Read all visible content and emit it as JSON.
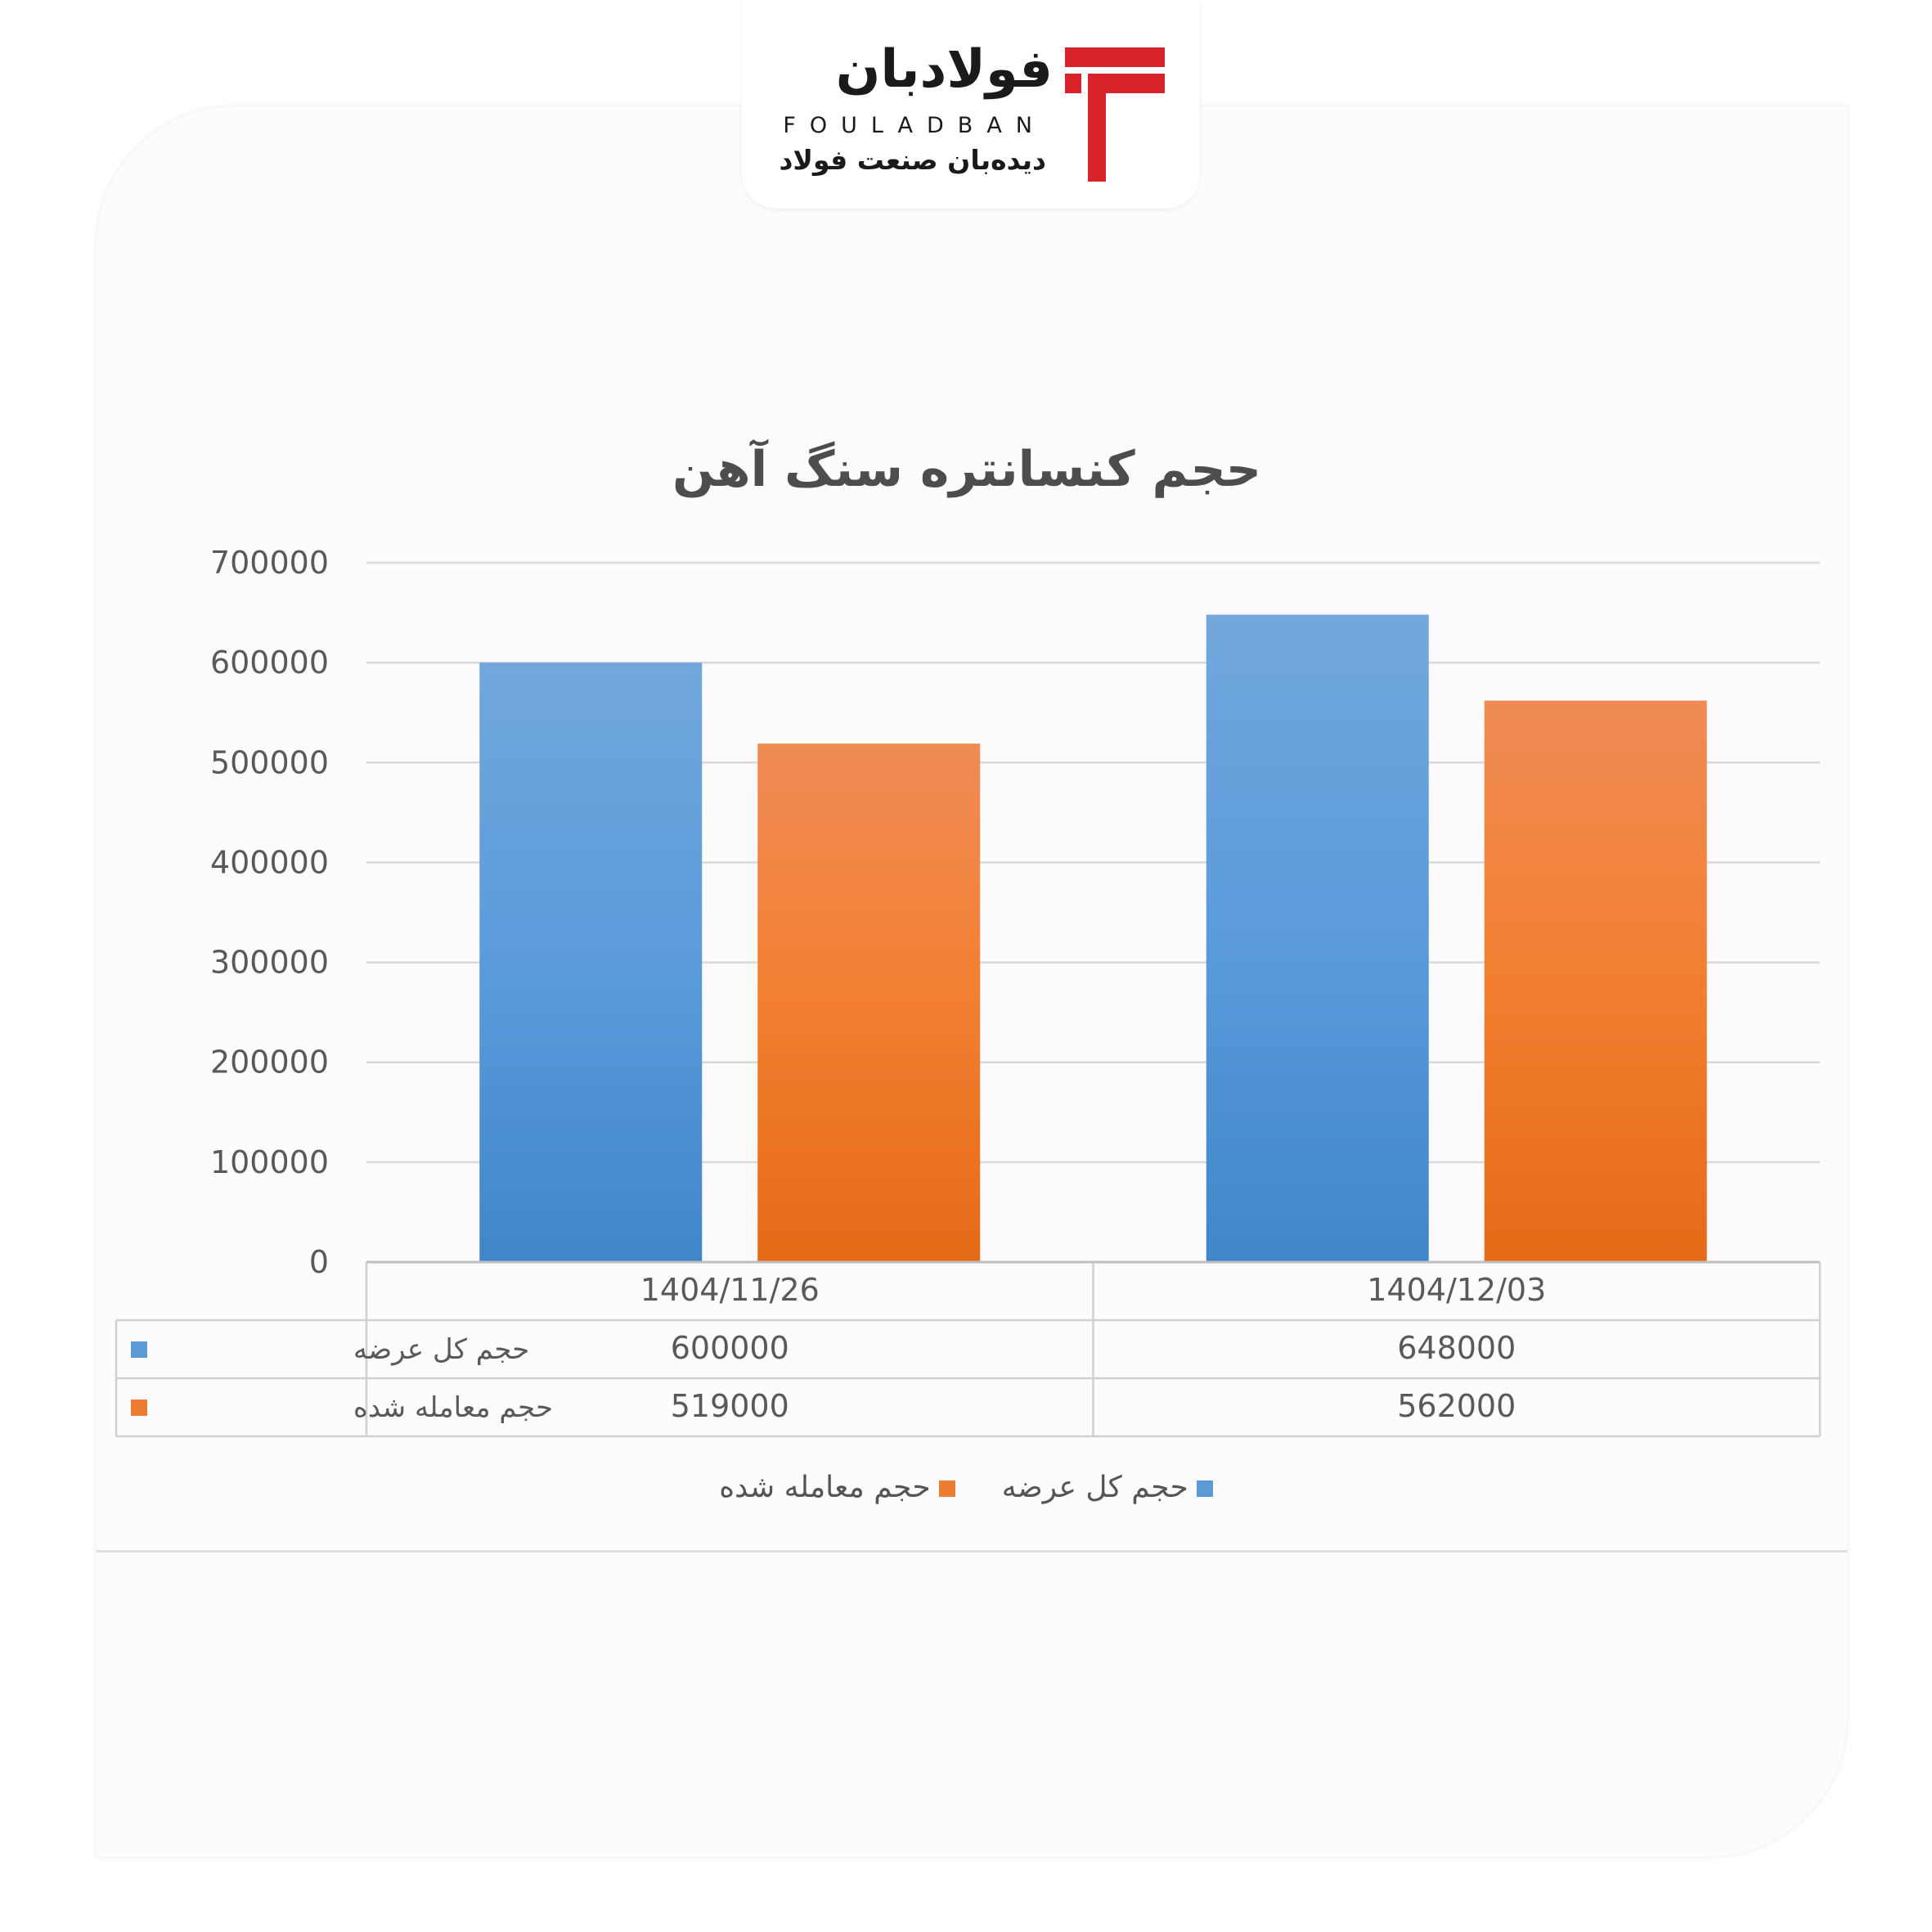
{
  "brand": {
    "name_fa": "فولادبان",
    "name_en": "FOULADBAN",
    "tagline": "دیده‌بان صنعت فولاد",
    "colors": {
      "accent": "#d8232a",
      "text": "#1a1a1a"
    }
  },
  "chart_data": {
    "type": "bar",
    "title": "حجم کنسانتره سنگ آهن",
    "categories": [
      "1404/11/26",
      "1404/12/03"
    ],
    "series": [
      {
        "name": "حجم کل عرضه",
        "values": [
          600000,
          648000
        ],
        "color": "#5b9bd5"
      },
      {
        "name": "حجم معامله شده",
        "values": [
          519000,
          562000
        ],
        "color": "#ed7d31"
      }
    ],
    "ylim": [
      0,
      700000
    ],
    "yticks": [
      "0",
      "100000",
      "200000",
      "300000",
      "400000",
      "500000",
      "600000",
      "700000"
    ],
    "table_values": [
      [
        "600000",
        "648000"
      ],
      [
        "519000",
        "562000"
      ]
    ],
    "grid": true,
    "legend_position": "bottom"
  }
}
